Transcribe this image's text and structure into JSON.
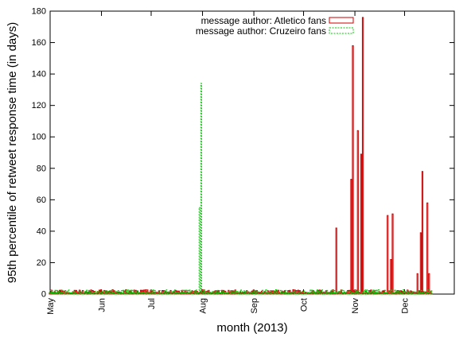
{
  "chart_data": {
    "type": "bar",
    "xlabel": "month (2013)",
    "ylabel": "95th percentile of retweet response time (in days)",
    "ylim": [
      0,
      180
    ],
    "yticks": [
      0,
      20,
      40,
      60,
      80,
      100,
      120,
      140,
      160,
      180
    ],
    "xlim": [
      "2013-05-01",
      "2013-12-31"
    ],
    "xticks": [
      {
        "label": "May",
        "date": "2013-05-01"
      },
      {
        "label": "Jun",
        "date": "2013-06-01"
      },
      {
        "label": "Jul",
        "date": "2013-07-01"
      },
      {
        "label": "Aug",
        "date": "2013-08-01"
      },
      {
        "label": "Sep",
        "date": "2013-09-01"
      },
      {
        "label": "Oct",
        "date": "2013-10-01"
      },
      {
        "label": "Nov",
        "date": "2013-11-01"
      },
      {
        "label": "Dec",
        "date": "2013-12-01"
      }
    ],
    "legend_position": "top-center",
    "grid": false,
    "baseline_level": 2,
    "series": [
      {
        "name": "message author: Atletico fans",
        "color": "#cc0000",
        "style": "solid",
        "peaks": [
          {
            "date": "2013-10-21",
            "value": 42
          },
          {
            "date": "2013-10-30",
            "value": 73
          },
          {
            "date": "2013-10-31",
            "value": 158
          },
          {
            "date": "2013-11-03",
            "value": 104
          },
          {
            "date": "2013-11-05",
            "value": 89
          },
          {
            "date": "2013-11-06",
            "value": 176
          },
          {
            "date": "2013-11-21",
            "value": 50
          },
          {
            "date": "2013-11-23",
            "value": 22
          },
          {
            "date": "2013-11-24",
            "value": 51
          },
          {
            "date": "2013-12-09",
            "value": 13
          },
          {
            "date": "2013-12-11",
            "value": 39
          },
          {
            "date": "2013-12-12",
            "value": 78
          },
          {
            "date": "2013-12-15",
            "value": 58
          },
          {
            "date": "2013-12-16",
            "value": 13
          }
        ]
      },
      {
        "name": "message author: Cruzeiro fans",
        "color": "#00cc00",
        "style": "dashed",
        "peaks": [
          {
            "date": "2013-07-30",
            "value": 55
          },
          {
            "date": "2013-07-31",
            "value": 134
          }
        ]
      }
    ]
  }
}
